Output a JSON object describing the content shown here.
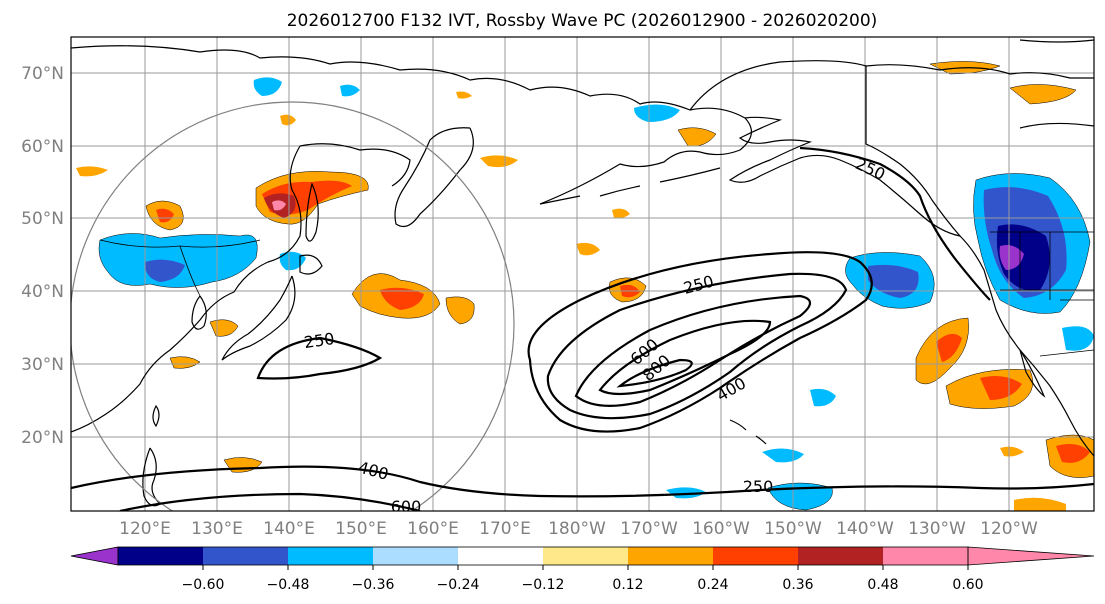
{
  "title": "2026012700 F132 IVT, Rossby Wave PC (2026012900 - 2026020200)",
  "latitude_labels": [
    "70°N",
    "60°N",
    "50°N",
    "40°N",
    "30°N",
    "20°N"
  ],
  "longitude_labels": [
    "120°E",
    "130°E",
    "140°E",
    "150°E",
    "160°E",
    "170°E",
    "180°W",
    "170°W",
    "160°W",
    "150°W",
    "140°W",
    "130°W",
    "120°W"
  ],
  "ivt_contour_labels": [
    "250",
    "250",
    "250",
    "250",
    "400",
    "400",
    "600",
    "600",
    "800"
  ],
  "colorbar": {
    "tick_labels": [
      "−0.60",
      "−0.48",
      "−0.36",
      "−0.24",
      "−0.12",
      "0.12",
      "0.24",
      "0.36",
      "0.48",
      "0.60"
    ],
    "colors": [
      "#9933cc",
      "#000088",
      "#3355cc",
      "#00bbff",
      "#aaddff",
      "#ffffff",
      "#ffe88a",
      "#ffa500",
      "#ff4000",
      "#b22222",
      "#ff88aa"
    ]
  }
}
